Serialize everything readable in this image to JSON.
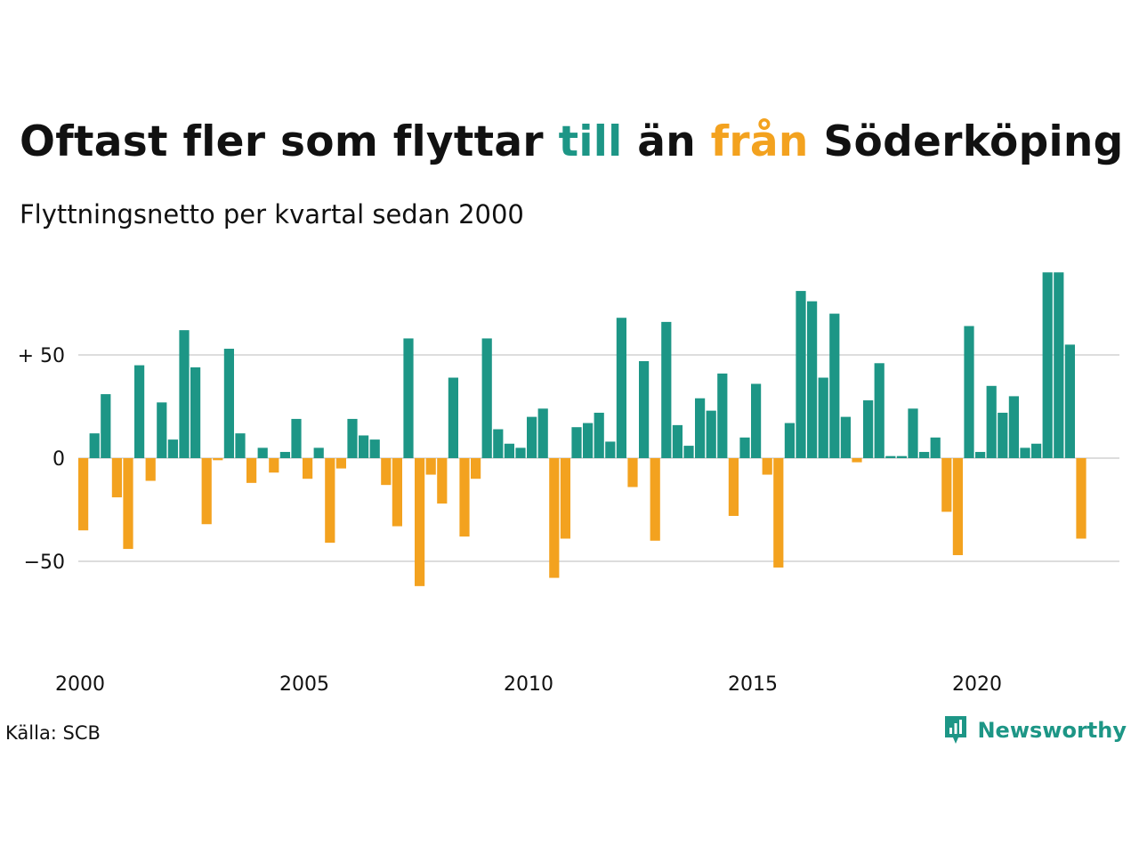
{
  "title": {
    "part1": "Oftast fler som flyttar ",
    "highlight_pos": "till",
    "part2": " än ",
    "highlight_neg": "från",
    "part3": " Söderköping"
  },
  "subtitle": "Flyttningsnetto per kvartal sedan 2000",
  "source": "Källa: SCB",
  "brand": "Newsworthy",
  "colors": {
    "positive": "#1d9686",
    "negative": "#f3a21f",
    "grid": "#dddddd",
    "text": "#111111"
  },
  "chart_data": {
    "type": "bar",
    "title": "Oftast fler som flyttar till än från Söderköping",
    "subtitle": "Flyttningsnetto per kvartal sedan 2000",
    "start_year": 2000,
    "periods_per_year": 4,
    "x_tick_labels": [
      "2000",
      "2005",
      "2010",
      "2015",
      "2020"
    ],
    "y_tick_values": [
      50,
      0,
      -50
    ],
    "y_tick_labels": [
      "+ 50",
      "0",
      "−50"
    ],
    "ylim": [
      -85,
      92
    ],
    "grid": true,
    "legend": "none",
    "values": [
      -35,
      12,
      31,
      -19,
      -44,
      45,
      -11,
      27,
      9,
      62,
      44,
      -32,
      -1,
      53,
      12,
      -12,
      5,
      -7,
      3,
      19,
      -10,
      5,
      -41,
      -5,
      19,
      11,
      9,
      -13,
      -33,
      58,
      -62,
      -8,
      -22,
      39,
      -38,
      -10,
      58,
      14,
      7,
      5,
      20,
      24,
      -58,
      -39,
      15,
      17,
      22,
      8,
      68,
      -14,
      47,
      -40,
      66,
      16,
      6,
      29,
      23,
      41,
      -28,
      10,
      36,
      -8,
      -53,
      17,
      81,
      76,
      39,
      70,
      20,
      -2,
      28,
      46,
      1,
      1,
      24,
      3,
      10,
      -26,
      -47,
      64,
      3,
      35,
      22,
      30,
      5,
      7,
      90,
      90,
      55,
      -39
    ]
  }
}
